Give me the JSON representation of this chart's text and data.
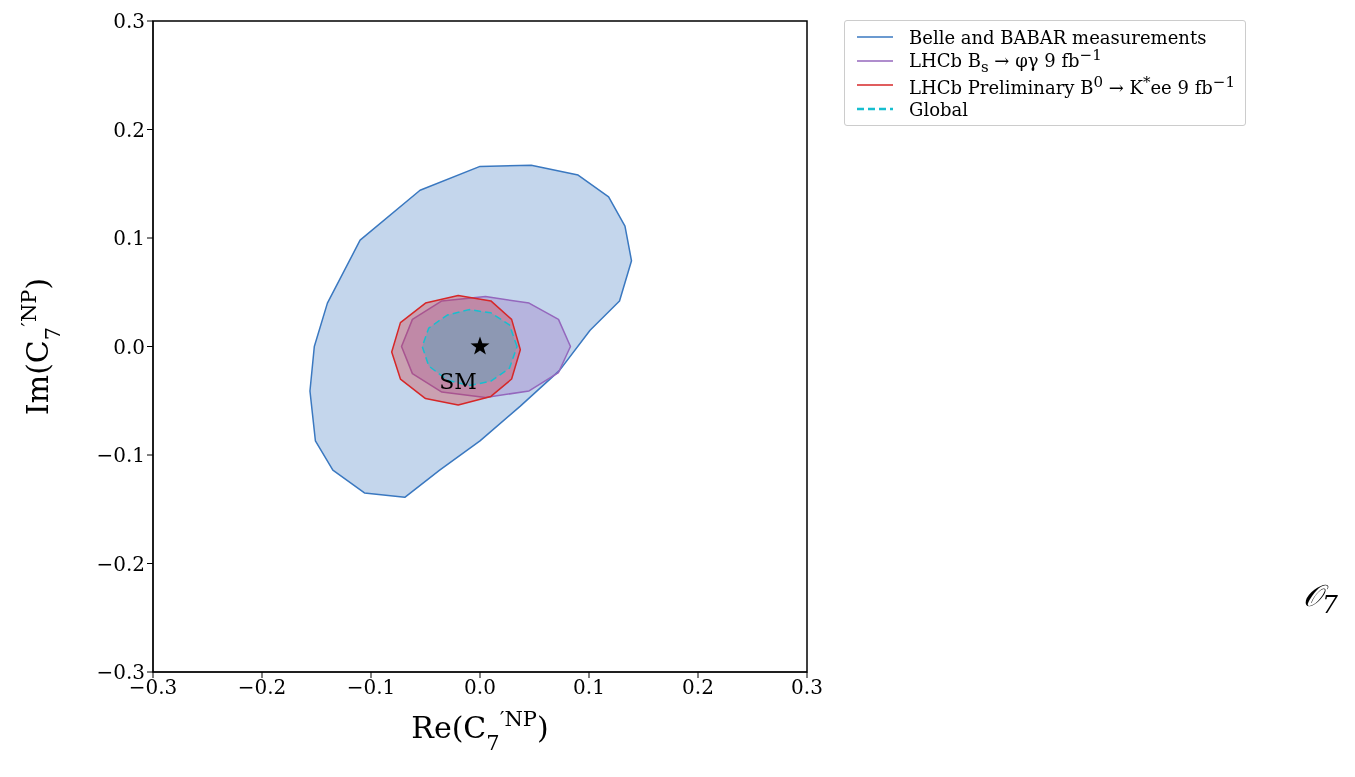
{
  "chart_data": {
    "type": "area",
    "xlabel": "Re(C$_{7}$$^{′NP}$)",
    "ylabel": "Im(C$_{7}$$^{′NP}$)",
    "xlim": [
      -0.3,
      0.3
    ],
    "ylim": [
      -0.3,
      0.3
    ],
    "xticks": [
      {
        "value": -0.3,
        "label": "−0.3"
      },
      {
        "value": -0.2,
        "label": "−0.2"
      },
      {
        "value": -0.1,
        "label": "−0.1"
      },
      {
        "value": 0,
        "label": "0.0"
      },
      {
        "value": 0.1,
        "label": "0.1"
      },
      {
        "value": 0.2,
        "label": "0.2"
      },
      {
        "value": 0.3,
        "label": "0.3"
      }
    ],
    "yticks": [
      {
        "value": -0.3,
        "label": "−0.3"
      },
      {
        "value": -0.2,
        "label": "−0.2"
      },
      {
        "value": -0.1,
        "label": "−0.1"
      },
      {
        "value": 0,
        "label": "0.0"
      },
      {
        "value": 0.1,
        "label": "0.1"
      },
      {
        "value": 0.2,
        "label": "0.2"
      },
      {
        "value": 0.3,
        "label": "0.3"
      }
    ],
    "grid": false,
    "legend": "top right",
    "line_style": "solid",
    "series": [
      {
        "name": "Belle and BABAR measurements",
        "color": "#3a78c0",
        "x": [
          0.0,
          0.047,
          0.09,
          0.118,
          0.133,
          0.139,
          0.128,
          0.101,
          0.073,
          0.037,
          0.0,
          -0.037,
          -0.069,
          -0.106,
          -0.135,
          -0.151,
          -0.156,
          -0.152,
          -0.14,
          -0.11,
          -0.055,
          0.0
        ],
        "values": [
          0.166,
          0.167,
          0.158,
          0.138,
          0.111,
          0.079,
          0.042,
          0.015,
          -0.022,
          -0.055,
          -0.087,
          -0.114,
          -0.139,
          -0.135,
          -0.114,
          -0.087,
          -0.041,
          0.0,
          0.04,
          0.098,
          0.144,
          0.166
        ]
      },
      {
        "name": "LHCb B$_{s}$ → φγ 9 fb$^{−1}$",
        "color": "#9467bd",
        "x": [
          0.083,
          0.072,
          0.045,
          0.005,
          -0.035,
          -0.062,
          -0.072,
          -0.062,
          -0.035,
          0.005,
          0.045,
          0.072,
          0.083
        ],
        "values": [
          0.0,
          0.025,
          0.04,
          0.046,
          0.042,
          0.025,
          0.0,
          -0.025,
          -0.042,
          -0.047,
          -0.041,
          -0.024,
          0.0
        ]
      },
      {
        "name": "LHCb Preliminary B$^{0}$ → K$^{*}$ee 9 fb$^{−1}$",
        "color": "#d62728",
        "x": [
          0.037,
          0.029,
          0.01,
          -0.02,
          -0.05,
          -0.073,
          -0.081,
          -0.073,
          -0.05,
          -0.02,
          0.01,
          0.029,
          0.037
        ],
        "values": [
          -0.003,
          0.025,
          0.042,
          0.047,
          0.04,
          0.022,
          -0.005,
          -0.03,
          -0.048,
          -0.054,
          -0.046,
          -0.03,
          -0.003
        ]
      },
      {
        "name": "Global",
        "color": "#17becf",
        "line_style": "dashed",
        "x": [
          0.034,
          0.027,
          0.01,
          -0.01,
          -0.03,
          -0.047,
          -0.053,
          -0.047,
          -0.03,
          -0.01,
          0.01,
          0.027,
          0.034
        ],
        "values": [
          0.0,
          0.02,
          0.031,
          0.034,
          0.029,
          0.017,
          0.0,
          -0.018,
          -0.031,
          -0.036,
          -0.032,
          -0.02,
          0.0
        ]
      },
      {
        "type": "scatter",
        "marker": "star",
        "color": "#000000",
        "x": [
          0.0
        ],
        "values": [
          0.0
        ]
      }
    ],
    "annotations": [
      "SM",
      "𝒪$_{7}$"
    ]
  }
}
